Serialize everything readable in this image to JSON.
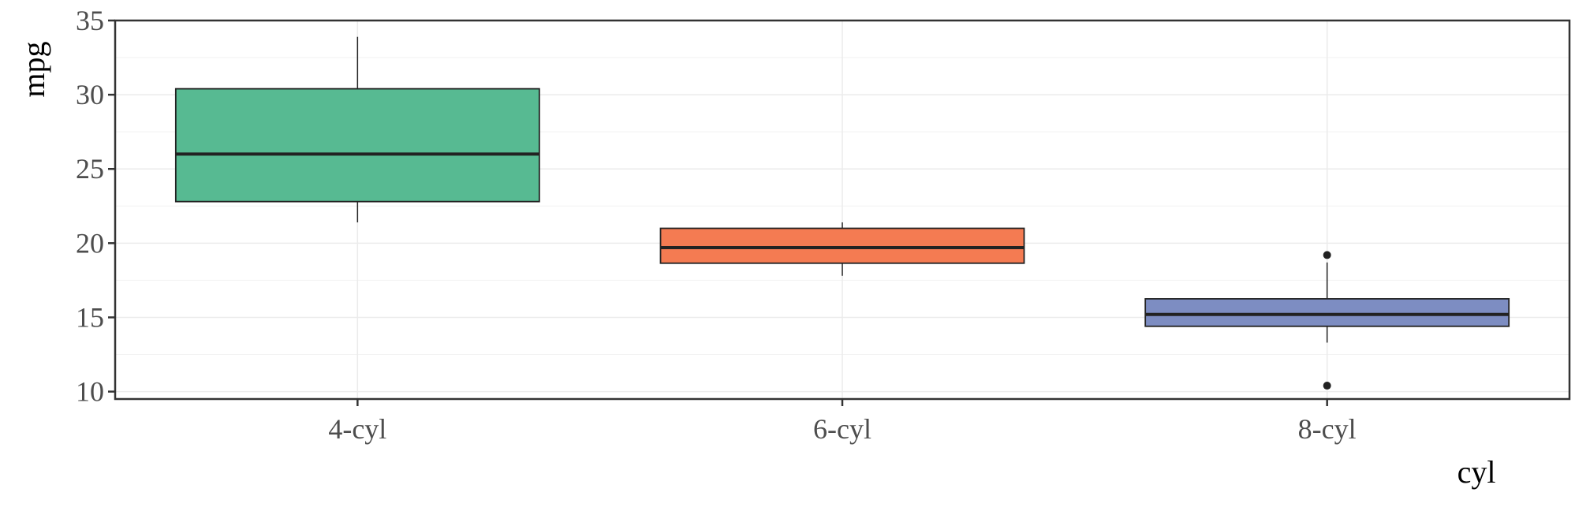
{
  "chart_data": {
    "type": "box",
    "title": "",
    "xlabel": "cyl",
    "ylabel": "mpg",
    "ylim": [
      9.5,
      35
    ],
    "yticks": [
      10,
      15,
      20,
      25,
      30,
      35
    ],
    "grid": true,
    "legend": "none",
    "categories": [
      "4-cyl",
      "6-cyl",
      "8-cyl"
    ],
    "boxes": [
      {
        "category": "4-cyl",
        "color": "#57BA92",
        "whisker_low": 21.4,
        "q1": 22.8,
        "median": 26.0,
        "q3": 30.4,
        "whisker_high": 33.9,
        "outliers": []
      },
      {
        "category": "6-cyl",
        "color": "#F47B52",
        "whisker_low": 17.8,
        "q1": 18.65,
        "median": 19.7,
        "q3": 21.0,
        "whisker_high": 21.4,
        "outliers": []
      },
      {
        "category": "8-cyl",
        "color": "#7D8DC2",
        "whisker_low": 13.3,
        "q1": 14.4,
        "median": 15.2,
        "q3": 16.25,
        "whisker_high": 18.7,
        "outliers": [
          19.2,
          10.4
        ]
      }
    ]
  }
}
